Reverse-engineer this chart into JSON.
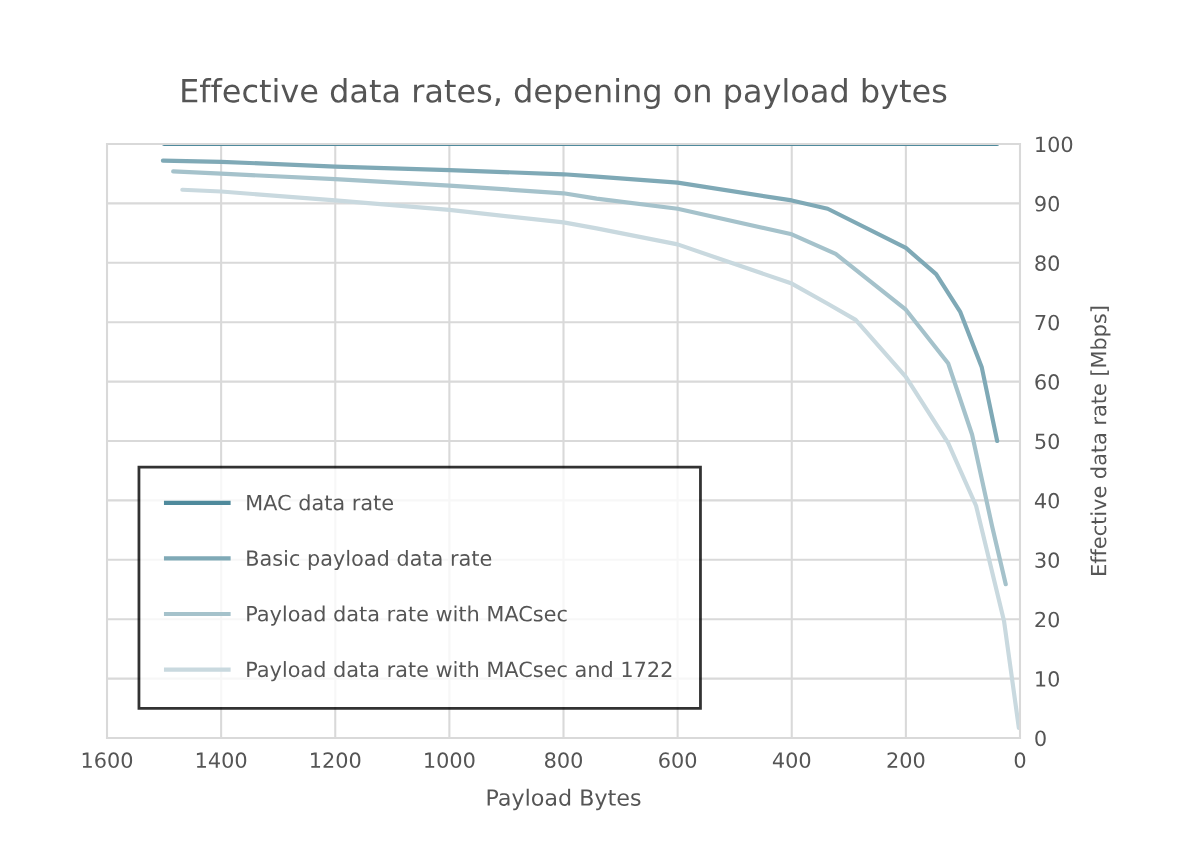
{
  "chart_data": {
    "type": "line",
    "title": "Effective data rates, depening on payload bytes",
    "xlabel": "Payload Bytes",
    "ylabel": "Effective data rate [Mbps]",
    "xlim": [
      1600,
      0
    ],
    "xticks": [
      1600,
      1400,
      1200,
      1000,
      800,
      600,
      400,
      200,
      0
    ],
    "ylim": [
      0,
      100
    ],
    "yticks": [
      0,
      10,
      20,
      30,
      40,
      50,
      60,
      70,
      80,
      90,
      100
    ],
    "grid": true,
    "legend": "bottom left",
    "marker": "none",
    "line_style": "solid",
    "series": [
      {
        "name": "MAC data rate",
        "color": "#4f8a9c",
        "x": [
          1500,
          40
        ],
        "values": [
          100,
          100
        ]
      },
      {
        "name": "Basic payload data rate",
        "color": "#7fa9b6",
        "x": [
          1502,
          1400,
          1200,
          1000,
          800,
          742,
          600,
          400,
          337,
          200,
          147,
          105,
          67,
          40
        ],
        "values": [
          97.2,
          97,
          96.2,
          95.6,
          94.9,
          94.5,
          93.5,
          90.5,
          89.1,
          82.5,
          78.1,
          71.8,
          62.4,
          50
        ]
      },
      {
        "name": "Payload data rate with MACsec",
        "color": "#a5c2cb",
        "x": [
          1484,
          1400,
          1200,
          1000,
          800,
          742,
          600,
          400,
          323,
          200,
          126,
          84,
          49,
          25
        ],
        "values": [
          95.4,
          95,
          94.1,
          93,
          91.7,
          90.8,
          89.1,
          84.8,
          81.5,
          72.1,
          63.1,
          51.1,
          35.7,
          25.9
        ]
      },
      {
        "name": "Payload data rate with MACsec and 1722",
        "color": "#c9d9df",
        "x": [
          1468,
          1400,
          1200,
          1000,
          800,
          742,
          600,
          400,
          337,
          288,
          200,
          126,
          77,
          28,
          2
        ],
        "values": [
          92.3,
          92,
          90.5,
          88.9,
          86.8,
          85.8,
          83.1,
          76.5,
          73.1,
          70.4,
          60.8,
          49.7,
          39.1,
          19.7,
          1.7
        ]
      }
    ]
  }
}
